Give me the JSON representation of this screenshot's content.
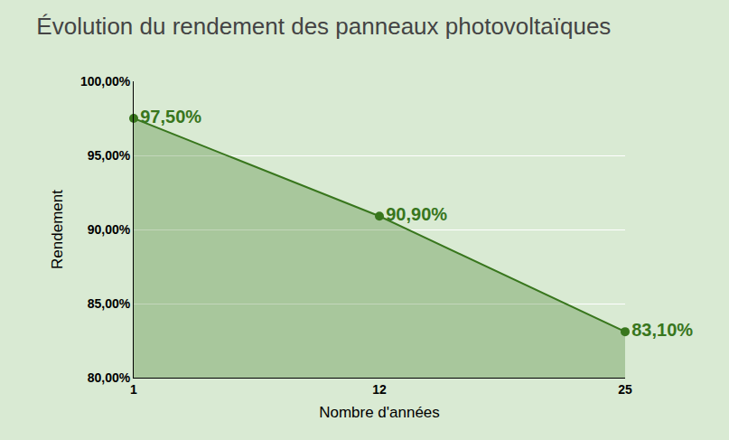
{
  "chart_data": {
    "type": "line",
    "title": "Évolution du rendement des panneaux photovoltaïques",
    "x_label": "Nombre d'années",
    "y_label": "Rendement",
    "categories": [
      "1",
      "12",
      "25"
    ],
    "values": [
      97.5,
      90.9,
      83.1
    ],
    "value_labels": [
      "97,50%",
      "90,90%",
      "83,10%"
    ],
    "data_labels": true,
    "color": "#38761d",
    "ylim": [
      80,
      100
    ],
    "yticks": [
      {
        "value": 80,
        "label": "80,00%"
      },
      {
        "value": 85,
        "label": "85,00%"
      },
      {
        "value": 90,
        "label": "90,00%"
      },
      {
        "value": 95,
        "label": "95,00%"
      },
      {
        "value": 100,
        "label": "100,00%"
      }
    ],
    "grid": true,
    "marker": "circle"
  }
}
